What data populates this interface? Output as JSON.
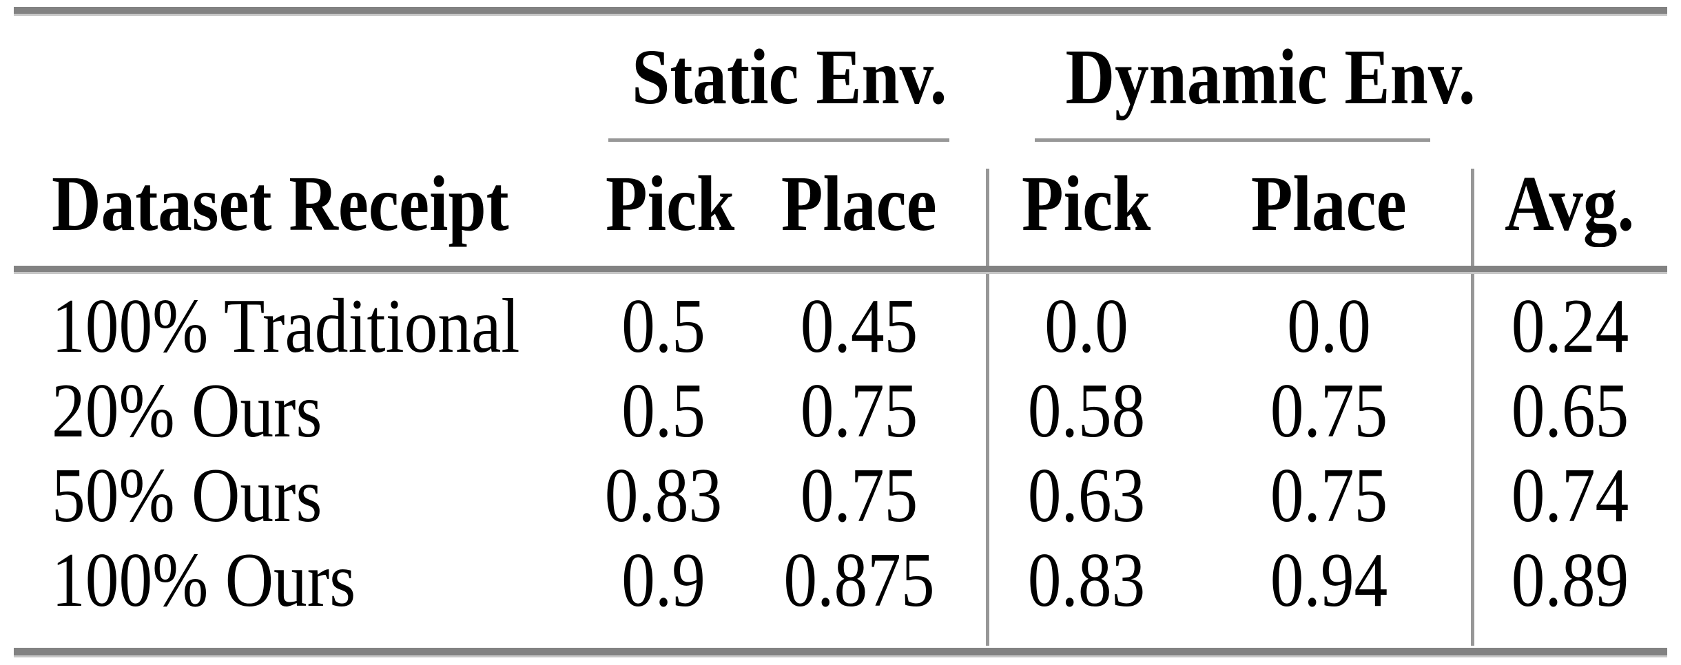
{
  "table": {
    "groups": {
      "static": "Static Env.",
      "dynamic": "Dynamic Env."
    },
    "columns": {
      "label": "Dataset Receipt",
      "static_pick": "Pick",
      "static_place": "Place",
      "dynamic_pick": "Pick",
      "dynamic_place": "Place",
      "avg": "Avg."
    },
    "rows": [
      {
        "label": "100% Traditional",
        "static_pick": "0.5",
        "static_place": "0.45",
        "dynamic_pick": "0.0",
        "dynamic_place": "0.0",
        "avg": "0.24"
      },
      {
        "label": "20% Ours",
        "static_pick": "0.5",
        "static_place": "0.75",
        "dynamic_pick": "0.58",
        "dynamic_place": "0.75",
        "avg": "0.65"
      },
      {
        "label": "50% Ours",
        "static_pick": "0.83",
        "static_place": "0.75",
        "dynamic_pick": "0.63",
        "dynamic_place": "0.75",
        "avg": "0.74"
      },
      {
        "label": "100% Ours",
        "static_pick": "0.9",
        "static_place": "0.875",
        "dynamic_pick": "0.83",
        "dynamic_place": "0.94",
        "avg": "0.89"
      }
    ]
  },
  "chart_data": {
    "type": "table",
    "row_labels": [
      "100% Traditional",
      "20% Ours",
      "50% Ours",
      "100% Ours"
    ],
    "columns": [
      "Static Env. Pick",
      "Static Env. Place",
      "Dynamic Env. Pick",
      "Dynamic Env. Place",
      "Avg."
    ],
    "values": [
      [
        0.5,
        0.45,
        0.0,
        0.0,
        0.24
      ],
      [
        0.5,
        0.75,
        0.58,
        0.75,
        0.65
      ],
      [
        0.83,
        0.75,
        0.63,
        0.75,
        0.74
      ],
      [
        0.9,
        0.875,
        0.83,
        0.94,
        0.89
      ]
    ]
  },
  "colors": {
    "background": "#ffffff",
    "text": "#000000",
    "rule_thick": "#828282",
    "rule_edge": "#c6c6c6",
    "rule_thin": "#979797"
  }
}
